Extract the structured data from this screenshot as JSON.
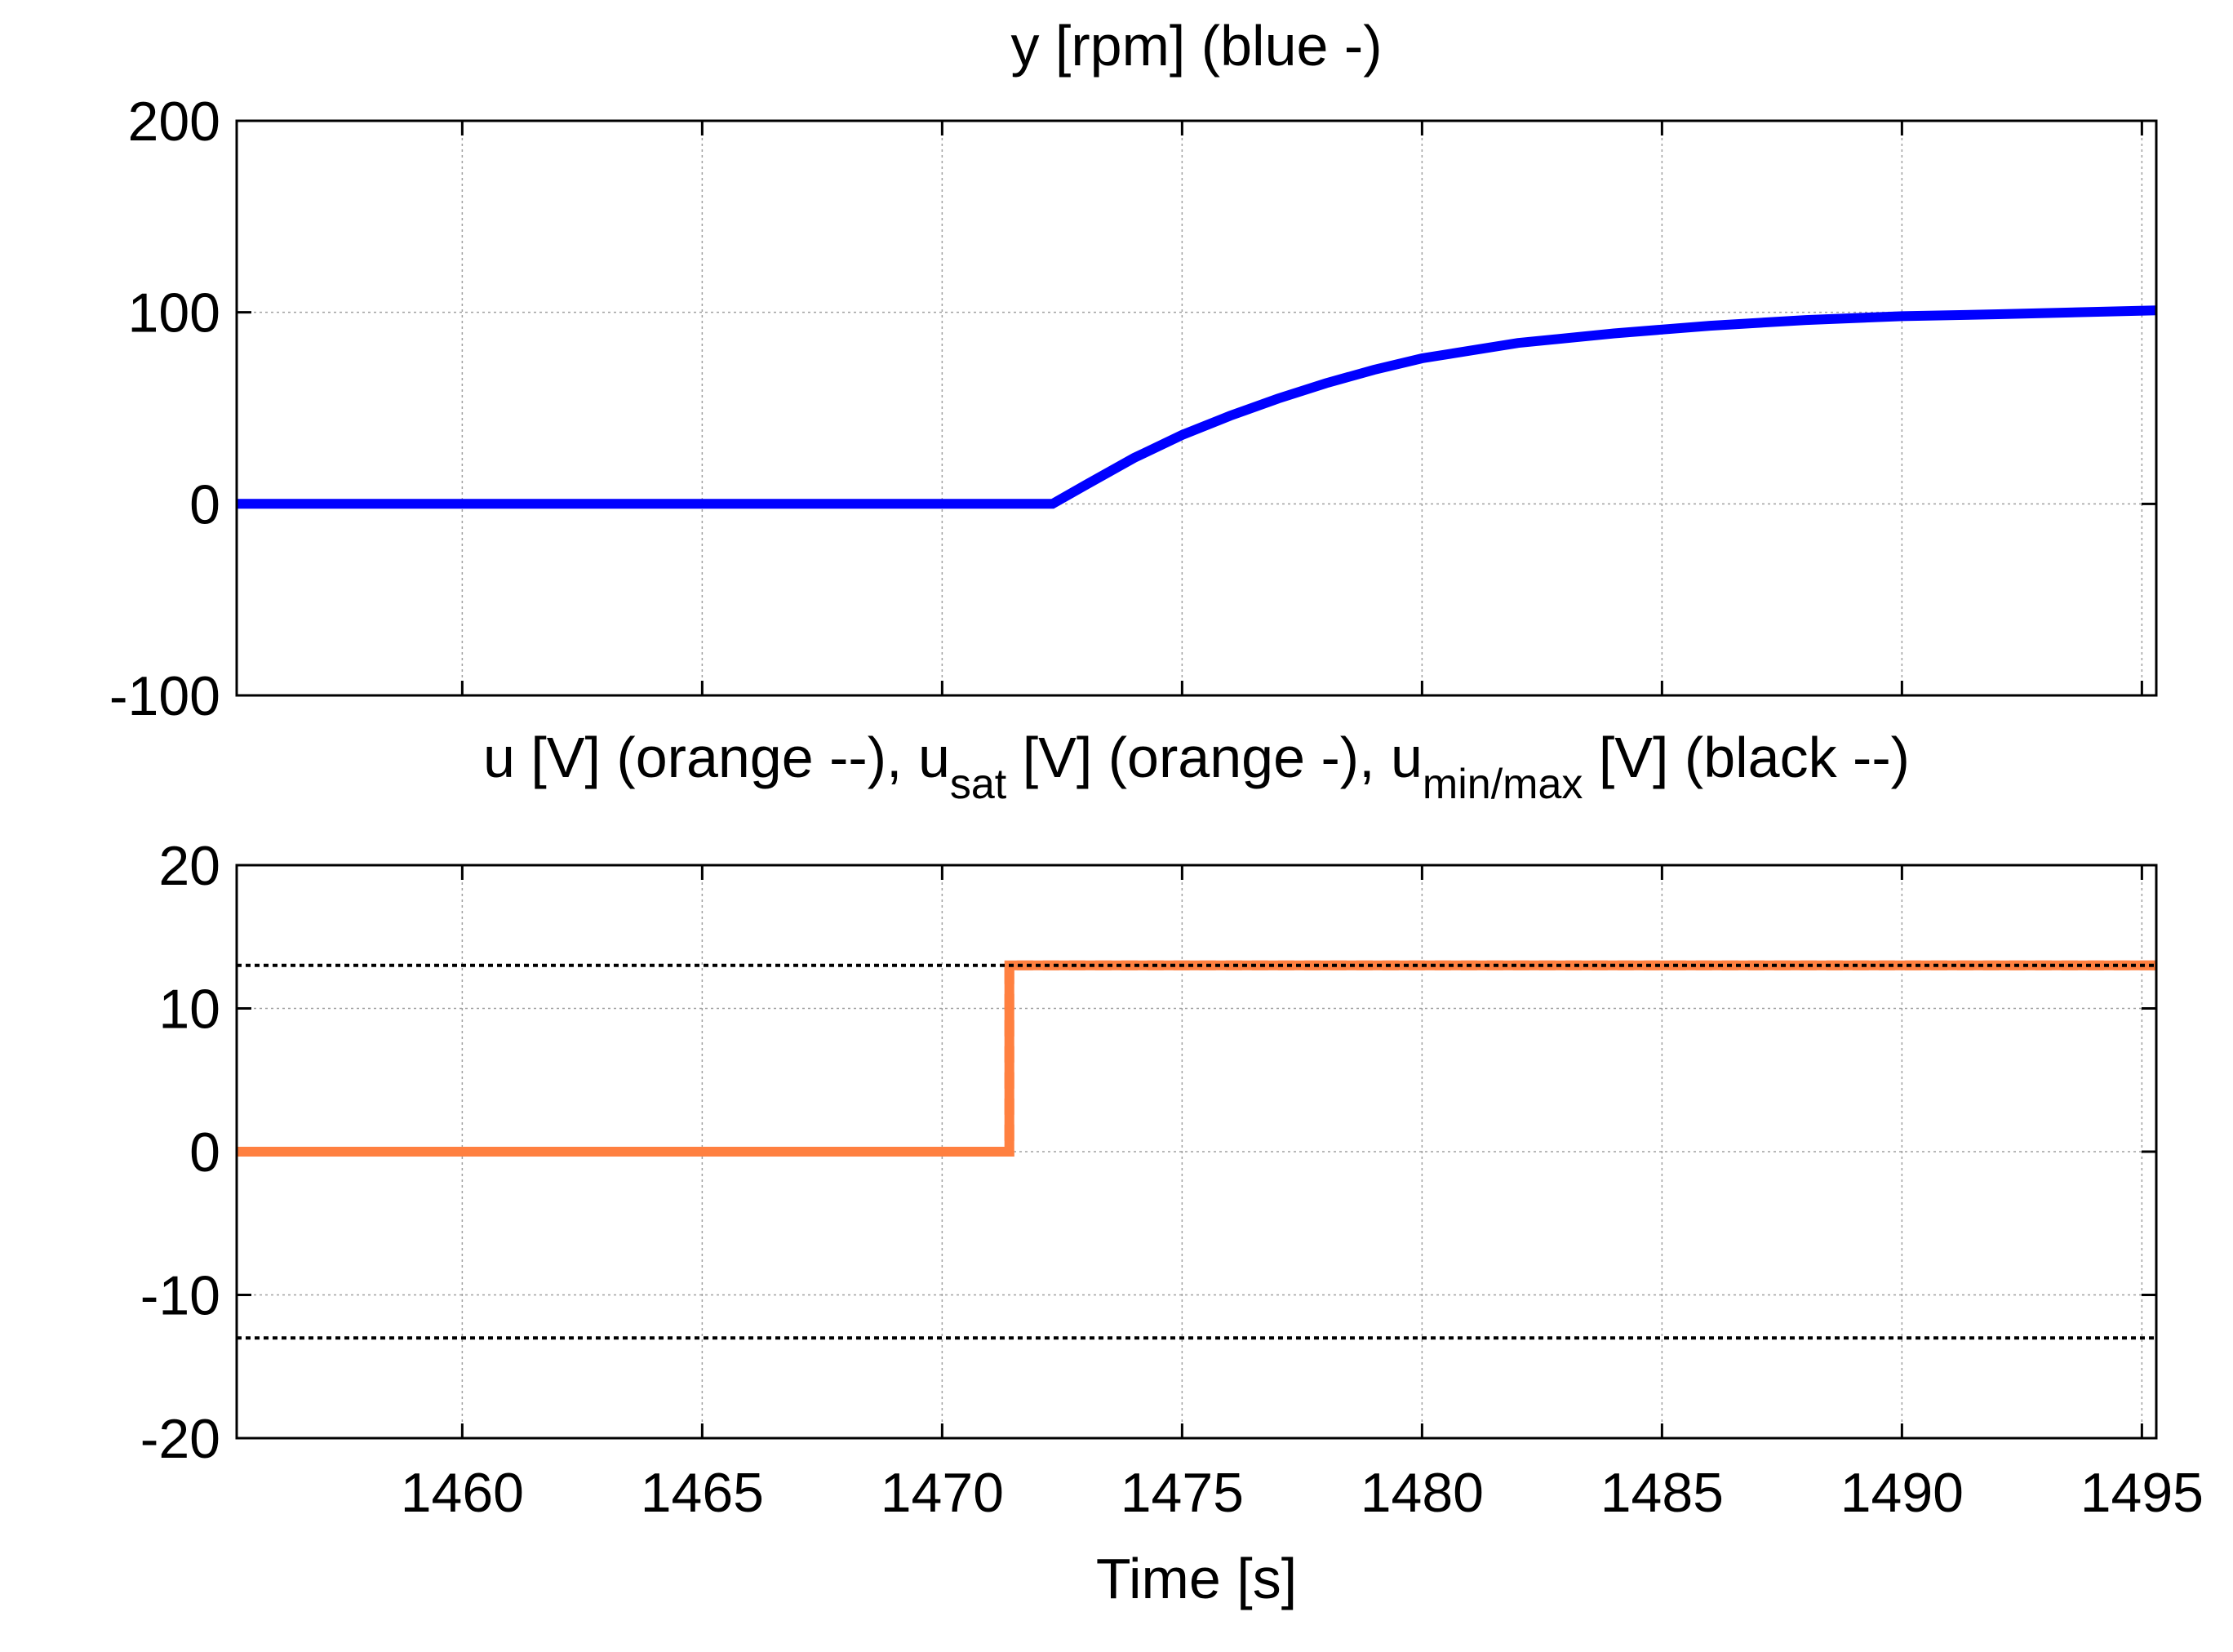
{
  "chart_data": [
    {
      "type": "line",
      "title": "y [rpm] (blue -)",
      "xlim": [
        1455.3,
        1495.3
      ],
      "ylim": [
        -100,
        200
      ],
      "xticks": [
        1460,
        1465,
        1470,
        1475,
        1480,
        1485,
        1490,
        1495
      ],
      "yticks": [
        -100,
        0,
        100,
        200
      ],
      "ytick_labels": [
        "-100",
        "0",
        "100",
        "200"
      ],
      "grid": true,
      "series": [
        {
          "color": "#0000ff",
          "style": "solid",
          "x": [
            1455.3,
            1460,
            1465,
            1470,
            1472.3,
            1473,
            1474,
            1475,
            1476,
            1477,
            1478,
            1479,
            1480,
            1482,
            1484,
            1486,
            1488,
            1490,
            1492,
            1495.3
          ],
          "y": [
            0,
            0,
            0,
            0,
            0,
            10,
            24,
            36,
            46,
            55,
            63,
            70,
            76,
            84,
            89,
            93,
            96,
            98,
            99,
            101
          ]
        }
      ]
    },
    {
      "type": "line",
      "title": "u [V] (orange --), u_sat [V] (orange -), u_min/max [V] (black --)",
      "title_parts": {
        "a": "u [V] (orange --), u",
        "sub1": "sat",
        "b": " [V] (orange -), u",
        "sub2": "min/max",
        "c": " [V] (black --)"
      },
      "xlabel": "Time [s]",
      "xlim": [
        1455.3,
        1495.3
      ],
      "ylim": [
        -20,
        20
      ],
      "xticks": [
        1460,
        1465,
        1470,
        1475,
        1480,
        1485,
        1490,
        1495
      ],
      "xtick_labels": [
        "1460",
        "1465",
        "1470",
        "1475",
        "1480",
        "1485",
        "1490",
        "1495"
      ],
      "yticks": [
        -20,
        -10,
        0,
        10,
        20
      ],
      "ytick_labels": [
        "-20",
        "-10",
        "0",
        "10",
        "20"
      ],
      "grid": true,
      "series": [
        {
          "color": "#ff8040",
          "style": "dashed",
          "x": [
            1455.3,
            1471.4,
            1471.4,
            1495.3
          ],
          "y": [
            0,
            0,
            13,
            13
          ]
        },
        {
          "color": "#ff8040",
          "style": "solid",
          "x": [
            1455.3,
            1471.4,
            1471.4,
            1495.3
          ],
          "y": [
            0,
            0,
            13,
            13
          ]
        },
        {
          "color": "#000000",
          "style": "dotted",
          "x": [
            1455.3,
            1495.3
          ],
          "y": [
            13,
            13
          ]
        },
        {
          "color": "#000000",
          "style": "dotted",
          "x": [
            1455.3,
            1495.3
          ],
          "y": [
            -13,
            -13
          ]
        }
      ]
    }
  ]
}
